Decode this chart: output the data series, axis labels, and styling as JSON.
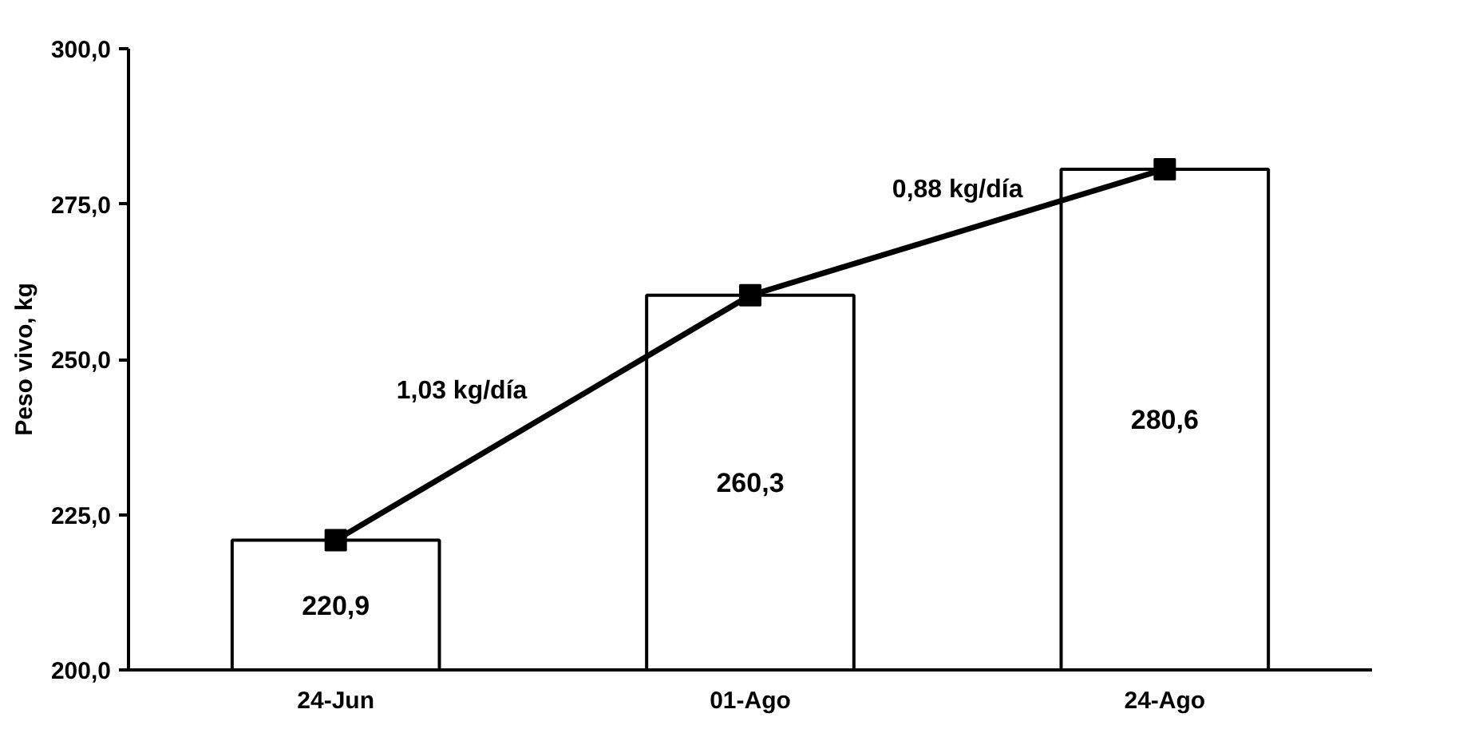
{
  "chart_data": {
    "type": "bar",
    "ylabel": "Peso vivo, kg",
    "categories": [
      "24-Jun",
      "01-Ago",
      "24-Ago"
    ],
    "series": [
      {
        "color": "#ffffff",
        "values": [
          220.9,
          260.3,
          280.6
        ],
        "value_labels": [
          "220,9",
          "260,3",
          "280,6"
        ]
      },
      {
        "type": "line",
        "color": "#000000",
        "values": [
          220.9,
          260.3,
          280.6
        ],
        "marker": "square"
      }
    ],
    "ylim": [
      200,
      300
    ],
    "yticks": [
      {
        "value": 200,
        "label": "200,0"
      },
      {
        "value": 225,
        "label": "225,0"
      },
      {
        "value": 250,
        "label": "250,0"
      },
      {
        "value": 275,
        "label": "275,0"
      },
      {
        "value": 300,
        "label": "300,0"
      }
    ],
    "annotations": [
      "1,03 kg/día",
      "0,88 kg/día"
    ]
  }
}
